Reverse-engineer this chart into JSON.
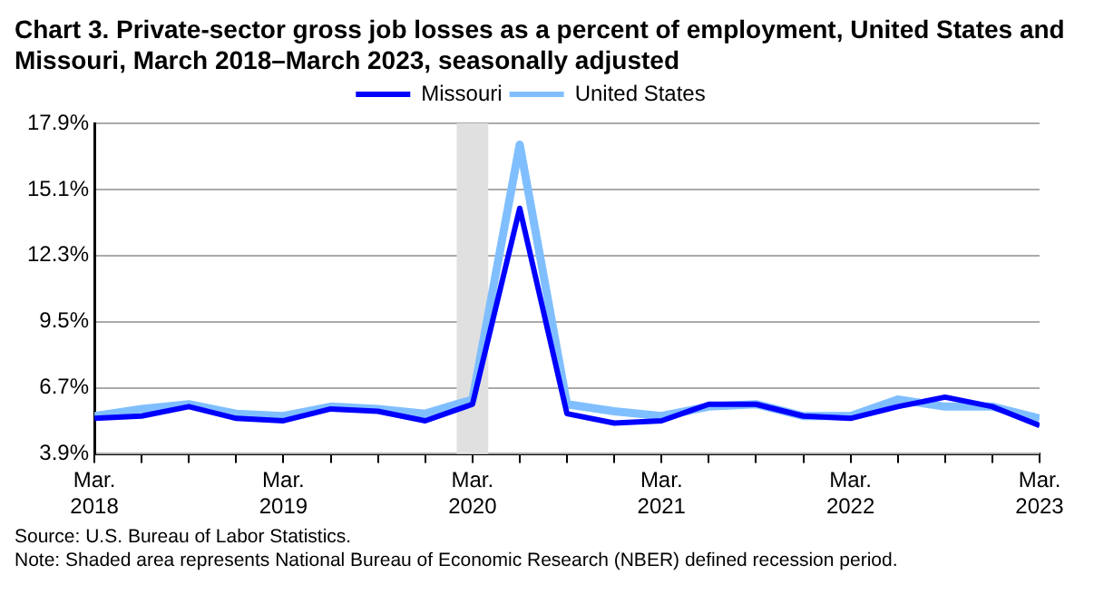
{
  "chart_data": {
    "type": "line",
    "title": "Chart 3. Private-sector gross job losses as a percent of employment, United States and Missouri, March 2018–March 2023, seasonally adjusted",
    "x": [
      "2018-03",
      "2018-06",
      "2018-09",
      "2018-12",
      "2019-03",
      "2019-06",
      "2019-09",
      "2019-12",
      "2020-03",
      "2020-06",
      "2020-09",
      "2020-12",
      "2021-03",
      "2021-06",
      "2021-09",
      "2021-12",
      "2022-03",
      "2022-06",
      "2022-09",
      "2022-12",
      "2023-03"
    ],
    "series": [
      {
        "name": "Missouri",
        "color": "#0000ff",
        "values": [
          5.4,
          5.5,
          5.9,
          5.4,
          5.3,
          5.8,
          5.7,
          5.3,
          6.0,
          14.3,
          5.6,
          5.2,
          5.3,
          6.0,
          6.0,
          5.5,
          5.4,
          5.9,
          6.3,
          5.9,
          5.1
        ]
      },
      {
        "name": "United States",
        "color": "#80bfff",
        "values": [
          5.5,
          5.8,
          6.0,
          5.6,
          5.5,
          5.9,
          5.8,
          5.6,
          6.2,
          17.0,
          6.0,
          5.7,
          5.5,
          5.9,
          6.0,
          5.5,
          5.5,
          6.2,
          5.9,
          5.9,
          5.4
        ]
      }
    ],
    "xlim": [
      "2018-03",
      "2023-03"
    ],
    "xticks": [
      {
        "value": "2018-03",
        "label": "Mar. 2018"
      },
      {
        "value": "2018-06",
        "label": null
      },
      {
        "value": "2018-09",
        "label": null
      },
      {
        "value": "2018-12",
        "label": null
      },
      {
        "value": "2019-03",
        "label": "Mar. 2019"
      },
      {
        "value": "2019-06",
        "label": null
      },
      {
        "value": "2019-09",
        "label": null
      },
      {
        "value": "2019-12",
        "label": null
      },
      {
        "value": "2020-03",
        "label": "Mar. 2020"
      },
      {
        "value": "2020-06",
        "label": null
      },
      {
        "value": "2020-09",
        "label": null
      },
      {
        "value": "2020-12",
        "label": null
      },
      {
        "value": "2021-03",
        "label": "Mar. 2021"
      },
      {
        "value": "2021-06",
        "label": null
      },
      {
        "value": "2021-09",
        "label": null
      },
      {
        "value": "2021-12",
        "label": null
      },
      {
        "value": "2022-03",
        "label": "Mar. 2022"
      },
      {
        "value": "2022-06",
        "label": null
      },
      {
        "value": "2022-09",
        "label": null
      },
      {
        "value": "2022-12",
        "label": null
      },
      {
        "value": "2023-03",
        "label": "Mar. 2023"
      }
    ],
    "ylim": [
      3.9,
      17.9
    ],
    "yticks": [
      {
        "value": 3.9,
        "label": "3.9%"
      },
      {
        "value": 6.7,
        "label": "6.7%"
      },
      {
        "value": 9.5,
        "label": "9.5%"
      },
      {
        "value": 12.3,
        "label": "12.3%"
      },
      {
        "value": 15.1,
        "label": "15.1%"
      },
      {
        "value": 17.9,
        "label": "17.9%"
      }
    ],
    "bands": [
      {
        "axis": "x",
        "from": "2020-02",
        "to": "2020-04",
        "color": "#e0e0e0"
      }
    ],
    "grid": "y",
    "legend": "top",
    "line_style": "solid",
    "marker": "none",
    "annotations": [
      "Source: U.S. Bureau of Labor Statistics.",
      "Note: Shaded area represents National Bureau of Economic Research (NBER) defined recession period."
    ]
  }
}
